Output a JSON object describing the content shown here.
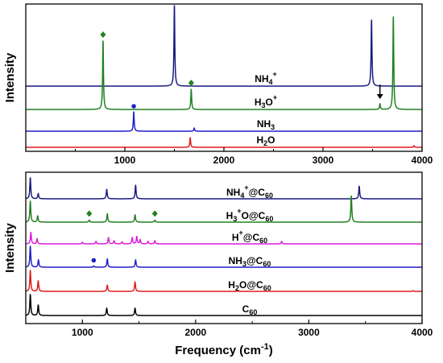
{
  "chart_data": [
    {
      "type": "line",
      "panel": "top",
      "title": "",
      "xlabel": "",
      "ylabel": "Intensity",
      "xlim": [
        0,
        4000
      ],
      "xticks": [
        1000,
        2000,
        3000,
        4000
      ],
      "grid": false,
      "legend": "none",
      "series": [
        {
          "label": "NH4+",
          "label_main": "NH",
          "label_sub": "4",
          "label_sup": "+",
          "color": "#1a1a80",
          "peaks": [
            {
              "x": 1500,
              "height": 1.0
            },
            {
              "x": 3490,
              "height": 0.82
            }
          ],
          "markers": []
        },
        {
          "label": "H3O+",
          "label_main": "H",
          "label_sub": "3",
          "label_after": "O",
          "label_sup": "+",
          "color": "#208020",
          "peaks": [
            {
              "x": 780,
              "height": 0.85
            },
            {
              "x": 1670,
              "height": 0.25
            },
            {
              "x": 3575,
              "height": 0.07
            },
            {
              "x": 3710,
              "height": 1.15
            }
          ],
          "markers": [
            {
              "x": 780,
              "symbol": "diamond"
            },
            {
              "x": 1670,
              "symbol": "diamond"
            },
            {
              "x": 3575,
              "symbol": "arrow"
            }
          ]
        },
        {
          "label": "NH3",
          "label_main": "NH",
          "label_sub": "3",
          "color": "#1f1fcc",
          "peaks": [
            {
              "x": 1090,
              "height": 0.24
            },
            {
              "x": 1700,
              "height": 0.04
            }
          ],
          "markers": [
            {
              "x": 1090,
              "symbol": "circle"
            }
          ]
        },
        {
          "label": "H2O",
          "label_main": "H",
          "label_sub": "2",
          "label_after": "O",
          "color": "#e01a1a",
          "peaks": [
            {
              "x": 1660,
              "height": 0.12
            },
            {
              "x": 3920,
              "height": 0.02
            }
          ],
          "markers": []
        }
      ]
    },
    {
      "type": "line",
      "panel": "bottom",
      "title": "",
      "xlabel": "Frequency (cm-1)",
      "xlabel_main": "Frequency (cm",
      "xlabel_sup": "-1",
      "xlabel_end": ")",
      "ylabel": "Intensity",
      "xlim": [
        500,
        4000
      ],
      "xticks": [
        1000,
        2000,
        3000,
        4000
      ],
      "grid": false,
      "legend": "none",
      "series": [
        {
          "label": "NH4+@C60",
          "label_main": "NH",
          "label_sub": "4",
          "label_sup": "+",
          "label_after": "@C",
          "label_sub2": "60",
          "color": "#1a1a80",
          "peaks": [
            {
              "x": 540,
              "height": 1.0
            },
            {
              "x": 610,
              "height": 0.25
            },
            {
              "x": 1215,
              "height": 0.45
            },
            {
              "x": 1470,
              "height": 0.65
            },
            {
              "x": 3445,
              "height": 0.6
            }
          ],
          "markers": []
        },
        {
          "label": "H3O+@C60",
          "label_main": "H",
          "label_sub": "3",
          "label_after": "O",
          "label_sup": "+",
          "label_after2": "@C",
          "label_sub2": "60",
          "color": "#208020",
          "peaks": [
            {
              "x": 540,
              "height": 1.0
            },
            {
              "x": 605,
              "height": 0.3
            },
            {
              "x": 1060,
              "height": 0.1
            },
            {
              "x": 1220,
              "height": 0.4
            },
            {
              "x": 1465,
              "height": 0.35
            },
            {
              "x": 1640,
              "height": 0.1
            },
            {
              "x": 3375,
              "height": 1.25
            }
          ],
          "markers": [
            {
              "x": 1060,
              "symbol": "diamond"
            },
            {
              "x": 1640,
              "symbol": "diamond"
            }
          ]
        },
        {
          "label": "H+@C60",
          "label_main": "H",
          "label_sup": "+",
          "label_after": "@C",
          "label_sub2": "60",
          "color": "#dd1bdd",
          "peaks": [
            {
              "x": 545,
              "height": 0.55
            },
            {
              "x": 600,
              "height": 0.25
            },
            {
              "x": 1000,
              "height": 0.08
            },
            {
              "x": 1120,
              "height": 0.12
            },
            {
              "x": 1230,
              "height": 0.3
            },
            {
              "x": 1280,
              "height": 0.15
            },
            {
              "x": 1350,
              "height": 0.1
            },
            {
              "x": 1440,
              "height": 0.3
            },
            {
              "x": 1480,
              "height": 0.35
            },
            {
              "x": 1510,
              "height": 0.2
            },
            {
              "x": 1580,
              "height": 0.12
            },
            {
              "x": 1640,
              "height": 0.15
            },
            {
              "x": 2760,
              "height": 0.12
            }
          ],
          "markers": []
        },
        {
          "label": "NH3@C60",
          "label_main": "NH",
          "label_sub": "3",
          "label_after": "@C",
          "label_sub2": "60",
          "color": "#1f1fcc",
          "peaks": [
            {
              "x": 540,
              "height": 1.0
            },
            {
              "x": 612,
              "height": 0.35
            },
            {
              "x": 1100,
              "height": 0.06
            },
            {
              "x": 1220,
              "height": 0.4
            },
            {
              "x": 1470,
              "height": 0.35
            }
          ],
          "markers": [
            {
              "x": 1100,
              "symbol": "circle"
            }
          ]
        },
        {
          "label": "H2O@C60",
          "label_main": "H",
          "label_sub": "2",
          "label_after": "O@C",
          "label_sub2": "60",
          "color": "#e01a1a",
          "peaks": [
            {
              "x": 540,
              "height": 1.0
            },
            {
              "x": 610,
              "height": 0.5
            },
            {
              "x": 1220,
              "height": 0.3
            },
            {
              "x": 1465,
              "height": 0.45
            },
            {
              "x": 3920,
              "height": 0.03
            }
          ],
          "markers": []
        },
        {
          "label": "C60",
          "label_main": "C",
          "label_sub": "60",
          "color": "#000000",
          "peaks": [
            {
              "x": 540,
              "height": 1.0
            },
            {
              "x": 610,
              "height": 0.5
            },
            {
              "x": 1215,
              "height": 0.35
            },
            {
              "x": 1465,
              "height": 0.35
            }
          ],
          "markers": []
        }
      ]
    }
  ]
}
